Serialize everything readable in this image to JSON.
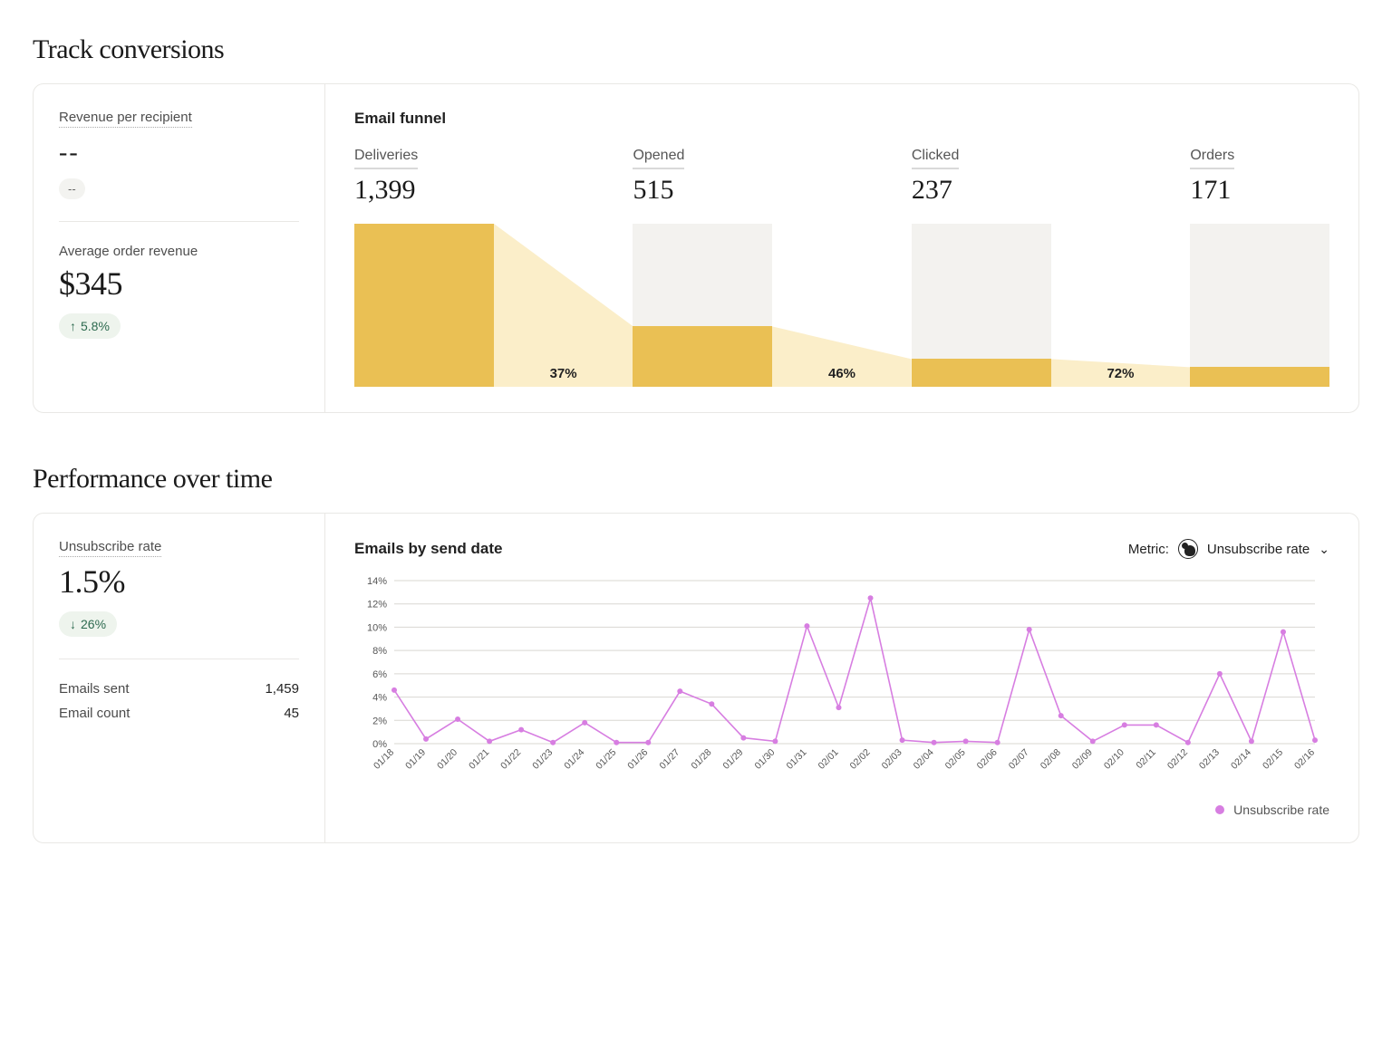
{
  "sections": {
    "conversions_title": "Track conversions",
    "performance_title": "Performance over time"
  },
  "conversions": {
    "rev_per_recipient_label": "Revenue per recipient",
    "rev_per_recipient_value": "--",
    "rev_per_recipient_delta": "--",
    "avg_order_label": "Average order revenue",
    "avg_order_value": "$345",
    "avg_order_delta": "5.8%",
    "avg_order_delta_direction": "up",
    "funnel": {
      "title": "Email funnel",
      "stages": [
        {
          "label": "Deliveries",
          "value": "1,399",
          "pct_full": 100
        },
        {
          "label": "Opened",
          "value": "515",
          "pct_full": 37
        },
        {
          "label": "Clicked",
          "value": "237",
          "pct_full": 17
        },
        {
          "label": "Orders",
          "value": "171",
          "pct_full": 12
        }
      ],
      "connectors": [
        "37%",
        "46%",
        "72%"
      ],
      "bar_color": "#eac054",
      "bar_bg_color": "#f3f2ef",
      "connector_fill": "#fbeec9"
    }
  },
  "performance": {
    "unsub_label": "Unsubscribe rate",
    "unsub_value": "1.5%",
    "unsub_delta": "26%",
    "unsub_delta_direction": "down",
    "emails_sent_label": "Emails sent",
    "emails_sent_value": "1,459",
    "email_count_label": "Email count",
    "email_count_value": "45",
    "chart": {
      "title": "Emails by send date",
      "metric_prefix": "Metric:",
      "metric_label": "Unsubscribe rate",
      "type": "line",
      "ylim": [
        0,
        14
      ],
      "ytick_step": 2,
      "y_suffix": "%",
      "categories": [
        "01/18",
        "01/19",
        "01/20",
        "01/21",
        "01/22",
        "01/23",
        "01/24",
        "01/25",
        "01/26",
        "01/27",
        "01/28",
        "01/29",
        "01/30",
        "01/31",
        "02/01",
        "02/02",
        "02/03",
        "02/04",
        "02/05",
        "02/06",
        "02/07",
        "02/08",
        "02/09",
        "02/10",
        "02/11",
        "02/12",
        "02/13",
        "02/14",
        "02/15",
        "02/16"
      ],
      "values": [
        4.6,
        0.4,
        2.1,
        0.2,
        1.2,
        0.1,
        1.8,
        0.1,
        0.1,
        4.5,
        3.4,
        0.5,
        0.2,
        10.1,
        3.1,
        12.5,
        0.3,
        0.1,
        0.2,
        0.1,
        9.8,
        2.4,
        0.2,
        1.6,
        1.6,
        0.1,
        6.0,
        0.2,
        9.6,
        0.3
      ],
      "line_color": "#d77ee1",
      "dot_color": "#d77ee1",
      "grid_color": "#d9d7d2",
      "background_color": "#ffffff",
      "line_width": 1.6,
      "dot_radius": 3,
      "legend_label": "Unsubscribe rate"
    }
  },
  "colors": {
    "pill_bg": "#eef4ed",
    "pill_text": "#2d6a4f",
    "border": "#e9e8e5"
  }
}
